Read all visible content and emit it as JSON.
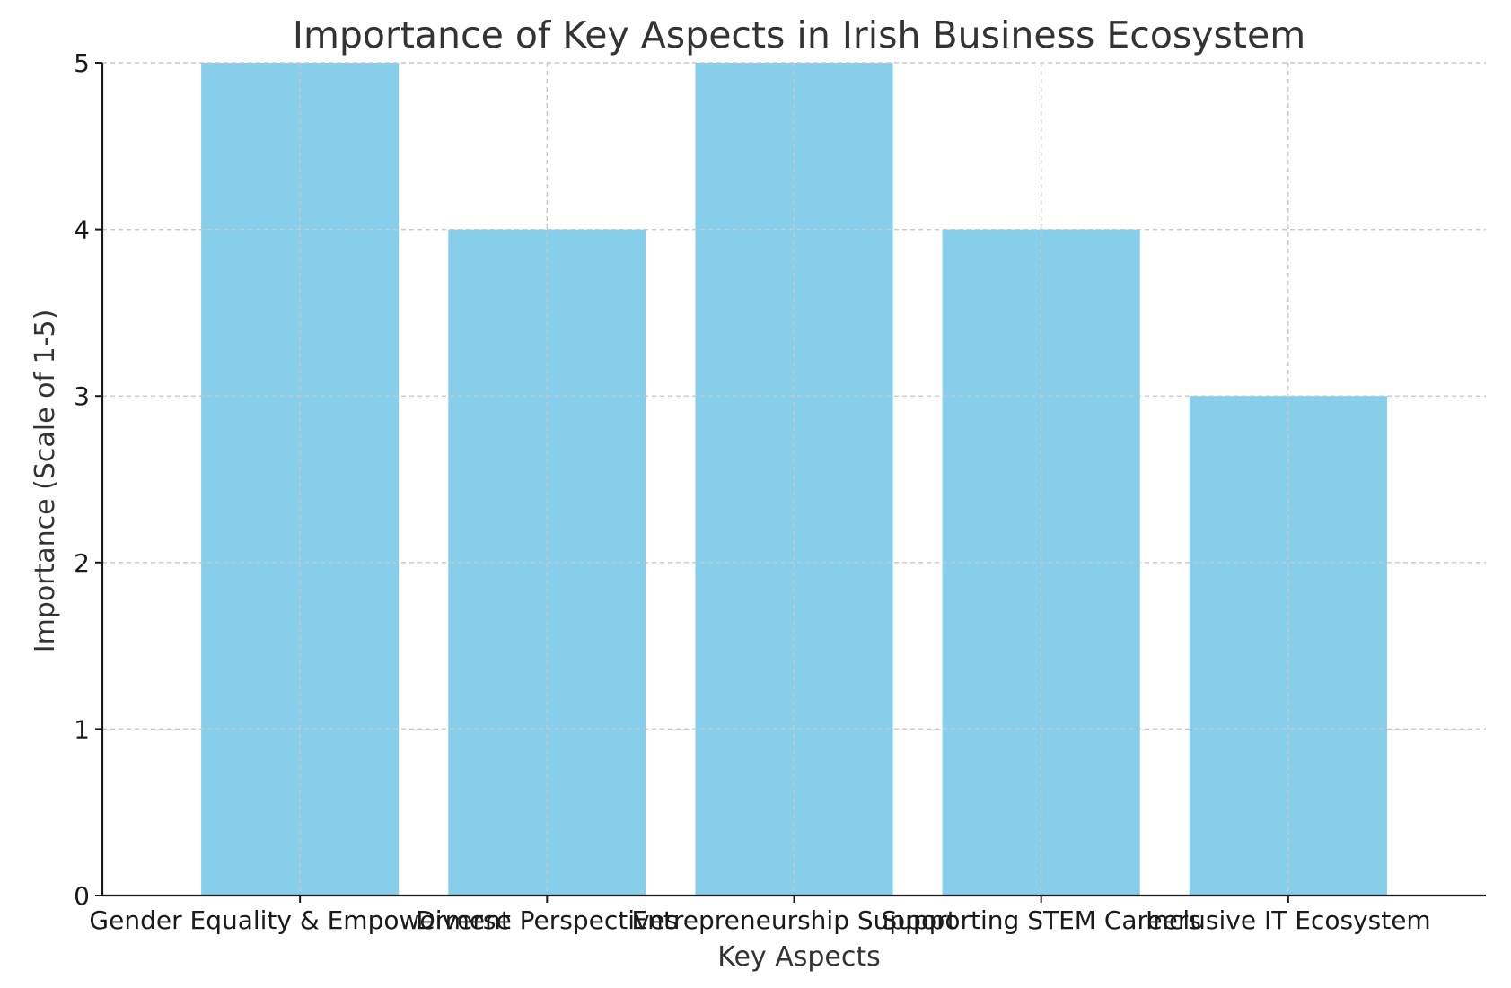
{
  "chart_data": {
    "type": "bar",
    "title": "Importance of Key Aspects in Irish Business Ecosystem",
    "xlabel": "Key Aspects",
    "ylabel": "Importance (Scale of 1-5)",
    "categories": [
      "Gender Equality & Empowerment",
      "Diverse Perspectives",
      "Entrepreneurship Support",
      "Supporting STEM Careers",
      "Inclusive IT Ecosystem"
    ],
    "values": [
      5,
      4,
      5,
      4,
      3
    ],
    "ylim": [
      0,
      5
    ],
    "yticks": [
      0,
      1,
      2,
      3,
      4,
      5
    ],
    "grid": true,
    "bar_color": "#87CEEB"
  }
}
